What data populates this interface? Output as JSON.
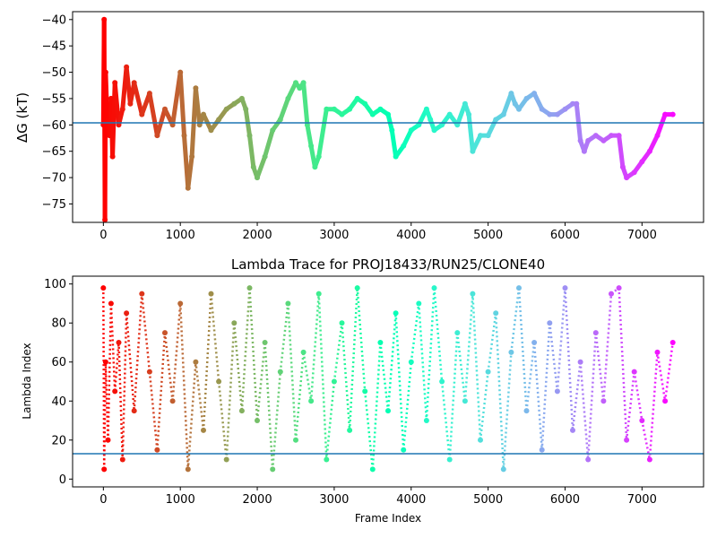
{
  "chart_data": [
    {
      "type": "scatter",
      "title": "",
      "xlabel": "",
      "ylabel": "ΔG (kT)",
      "xlim": [
        -400,
        7800
      ],
      "ylim": [
        -78.5,
        -38.5
      ],
      "x_ticks": [
        0,
        1000,
        2000,
        3000,
        4000,
        5000,
        6000,
        7000
      ],
      "y_ticks": [
        -75,
        -70,
        -65,
        -60,
        -55,
        -50,
        -45,
        -40
      ],
      "reference_line": -59.6,
      "reference_line_color": "#1f77b4",
      "colormap": "rainbow, red at frame 0 to violet at frame 7400",
      "series": [
        {
          "x": [
            0,
            10,
            20,
            30,
            50,
            80,
            100,
            120,
            150,
            200,
            250,
            300,
            350,
            400,
            500,
            600,
            700,
            800,
            900,
            1000,
            1050,
            1100,
            1150,
            1200,
            1250,
            1300,
            1400,
            1500,
            1600,
            1700,
            1800,
            1850,
            1900,
            1950,
            2000,
            2100,
            2200,
            2300,
            2400,
            2500,
            2550,
            2600,
            2650,
            2700,
            2750,
            2800,
            2900,
            3000,
            3100,
            3200,
            3300,
            3400,
            3500,
            3600,
            3700,
            3750,
            3800,
            3900,
            4000,
            4100,
            4200,
            4250,
            4300,
            4400,
            4500,
            4600,
            4700,
            4750,
            4800,
            4900,
            5000,
            5100,
            5200,
            5300,
            5350,
            5400,
            5500,
            5600,
            5700,
            5800,
            5900,
            6000,
            6100,
            6150,
            6200,
            6250,
            6300,
            6400,
            6500,
            6600,
            6700,
            6750,
            6800,
            6900,
            7000,
            7100,
            7200,
            7300,
            7400
          ],
          "y": [
            -60,
            -40,
            -78,
            -50,
            -59,
            -62,
            -55,
            -66,
            -52,
            -60,
            -57,
            -49,
            -56,
            -52,
            -58,
            -54,
            -62,
            -57,
            -60,
            -50,
            -62,
            -72,
            -66,
            -53,
            -60,
            -58,
            -61,
            -59,
            -57,
            -56,
            -55,
            -57,
            -62,
            -68,
            -70,
            -66,
            -61,
            -59,
            -55,
            -52,
            -53,
            -52,
            -60,
            -64,
            -68,
            -66,
            -57,
            -57,
            -58,
            -57,
            -55,
            -56,
            -58,
            -57,
            -58,
            -61,
            -66,
            -64,
            -61,
            -60,
            -57,
            -59,
            -61,
            -60,
            -58,
            -60,
            -56,
            -58,
            -65,
            -62,
            -62,
            -59,
            -58,
            -54,
            -56,
            -57,
            -55,
            -54,
            -57,
            -58,
            -58,
            -57,
            -56,
            -56,
            -63,
            -65,
            -63,
            -62,
            -63,
            -62,
            -62,
            -68,
            -70,
            -69,
            -67,
            -65,
            -62,
            -58,
            -58
          ]
        }
      ]
    },
    {
      "type": "scatter",
      "title": "Lambda Trace for PROJ18433/RUN25/CLONE40",
      "xlabel": "Frame Index",
      "ylabel": "Lambda Index",
      "xlim": [
        -400,
        7800
      ],
      "ylim": [
        -4,
        104
      ],
      "x_ticks": [
        0,
        1000,
        2000,
        3000,
        4000,
        5000,
        6000,
        7000
      ],
      "y_ticks": [
        0,
        20,
        40,
        60,
        80,
        100
      ],
      "reference_line": 13,
      "reference_line_color": "#1f77b4",
      "colormap": "rainbow, red at frame 0 to violet at frame 7400",
      "series": [
        {
          "x": [
            0,
            10,
            30,
            60,
            100,
            150,
            200,
            250,
            300,
            400,
            500,
            600,
            700,
            800,
            900,
            1000,
            1100,
            1200,
            1300,
            1400,
            1500,
            1600,
            1700,
            1800,
            1900,
            2000,
            2100,
            2200,
            2300,
            2400,
            2500,
            2600,
            2700,
            2800,
            2900,
            3000,
            3100,
            3200,
            3300,
            3400,
            3500,
            3600,
            3700,
            3800,
            3900,
            4000,
            4100,
            4200,
            4300,
            4400,
            4500,
            4600,
            4700,
            4800,
            4900,
            5000,
            5100,
            5200,
            5300,
            5400,
            5500,
            5600,
            5700,
            5800,
            5900,
            6000,
            6100,
            6200,
            6300,
            6400,
            6500,
            6600,
            6700,
            6800,
            6900,
            7000,
            7100,
            7200,
            7300,
            7400
          ],
          "y": [
            98,
            5,
            60,
            20,
            90,
            45,
            70,
            10,
            85,
            35,
            95,
            55,
            15,
            75,
            40,
            90,
            5,
            60,
            25,
            95,
            50,
            10,
            80,
            35,
            98,
            30,
            70,
            5,
            55,
            90,
            20,
            65,
            40,
            95,
            10,
            50,
            80,
            25,
            98,
            45,
            5,
            70,
            35,
            85,
            15,
            60,
            90,
            30,
            98,
            50,
            10,
            75,
            40,
            95,
            20,
            55,
            85,
            5,
            65,
            98,
            35,
            70,
            15,
            80,
            45,
            98,
            25,
            60,
            10,
            75,
            40,
            95,
            98,
            20,
            55,
            30,
            10,
            65,
            40,
            70
          ]
        }
      ]
    }
  ]
}
